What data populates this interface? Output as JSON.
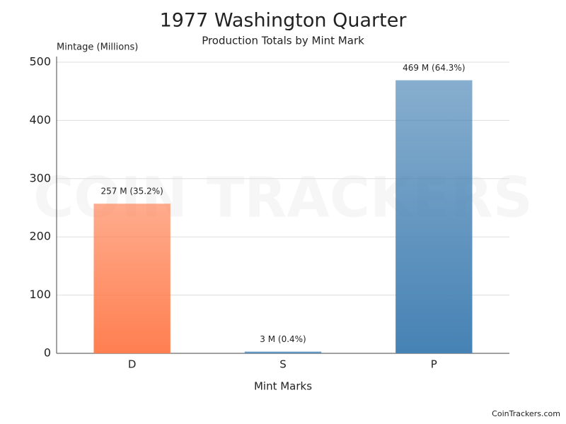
{
  "chart_data": {
    "type": "bar",
    "title": "1977 Washington Quarter",
    "subtitle": "Production Totals by Mint Mark",
    "y_label": "Mintage (Millions)",
    "x_label": "Mint Marks",
    "categories": [
      "D",
      "S",
      "P"
    ],
    "values": [
      257,
      3,
      469
    ],
    "value_labels": [
      "257 M (35.2%)",
      "3 M (0.4%)",
      "469 M (64.3%)"
    ],
    "colors": [
      "#ff7f50",
      "#4682b4",
      "#4682b4"
    ],
    "ylim": [
      0,
      500
    ],
    "yticks": [
      0,
      100,
      200,
      300,
      400,
      500
    ],
    "grid": true,
    "watermark": "COIN TRACKERS",
    "credit": "CoinTrackers.com"
  }
}
